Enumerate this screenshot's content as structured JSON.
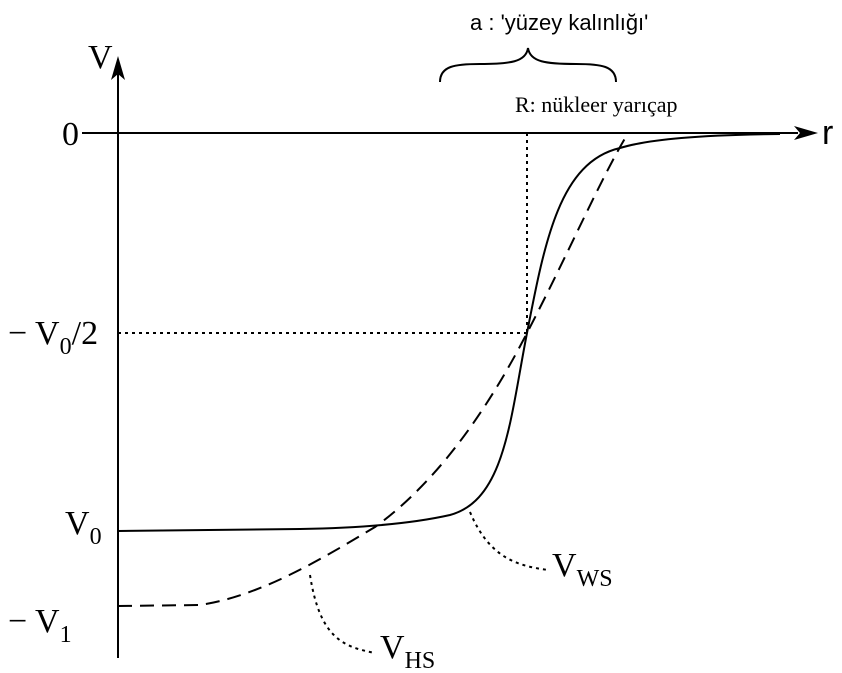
{
  "axes": {
    "y_label": "V",
    "x_label": "r"
  },
  "annotations": {
    "surface_thickness": "a :  'yüzey kalınlığı'",
    "nuclear_radius": "R: nükleer yarıçap"
  },
  "ticks": {
    "zero": "0",
    "half_depth_prefix": "− V",
    "half_depth_sub": "0",
    "half_depth_suffix": "/2",
    "v0_main": "V",
    "v0_sub": "0",
    "v1_prefix": "− V",
    "v1_sub": "1"
  },
  "curve_labels": {
    "ws_main": "V",
    "ws_sub": "WS",
    "hs_main": "V",
    "hs_sub": "HS"
  }
}
